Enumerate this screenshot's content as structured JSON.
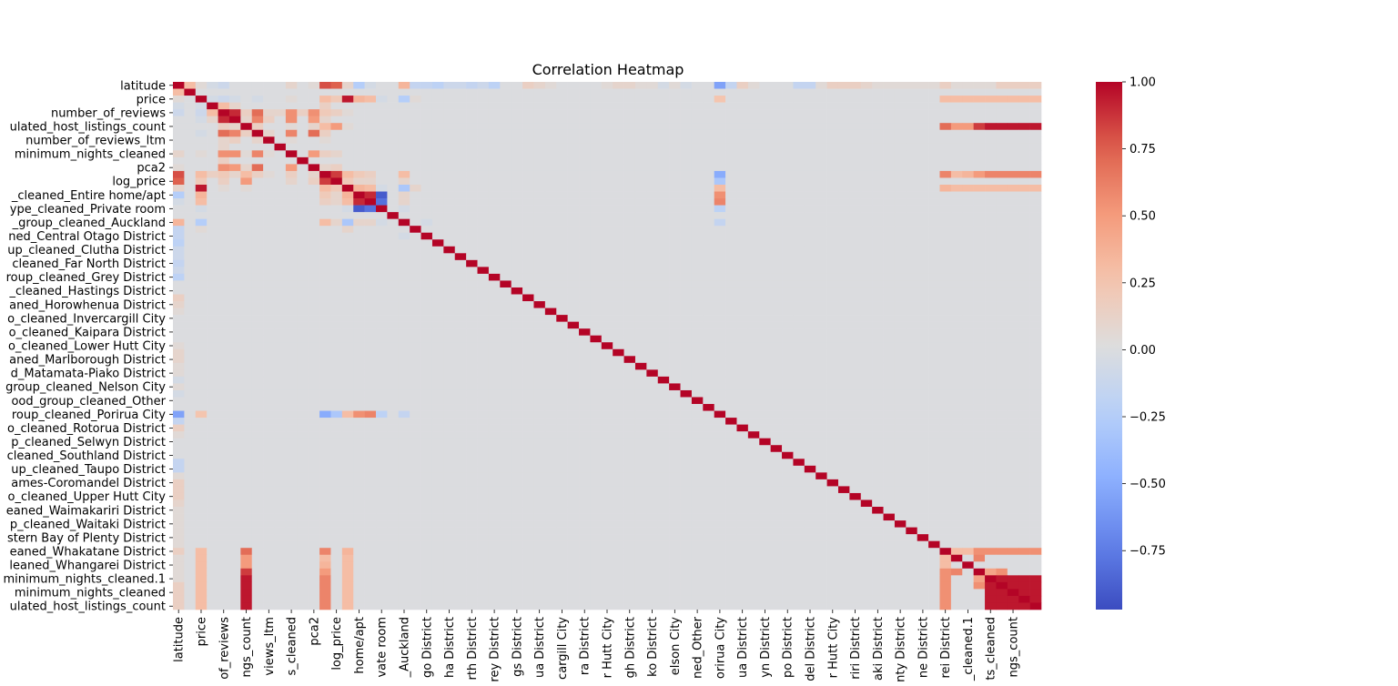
{
  "chart_data": {
    "type": "heatmap",
    "title": "Correlation Heatmap",
    "xlabel": "",
    "ylabel": "",
    "colormap": "coolwarm",
    "colorbar": {
      "vmin": -0.97,
      "vmax": 1.0,
      "ticks": [
        1.0,
        0.75,
        0.5,
        0.25,
        0.0,
        -0.25,
        -0.5,
        -0.75
      ],
      "tick_labels": [
        "1.00",
        "0.75",
        "0.50",
        "0.25",
        "0.00",
        "−0.25",
        "−0.50",
        "−0.75"
      ]
    },
    "y_tick_labels": [
      "latitude",
      "price",
      "number_of_reviews",
      "ulated_host_listings_count",
      "number_of_reviews_ltm",
      "minimum_nights_cleaned",
      "pca2",
      "log_price",
      "_cleaned_Entire home/apt",
      "ype_cleaned_Private room",
      "_group_cleaned_Auckland",
      "ned_Central Otago District",
      "up_cleaned_Clutha District",
      "cleaned_Far North District",
      "roup_cleaned_Grey District",
      "_cleaned_Hastings District",
      "aned_Horowhenua District",
      "o_cleaned_Invercargill City",
      "o_cleaned_Kaipara District",
      "o_cleaned_Lower Hutt City",
      "aned_Marlborough District",
      "d_Matamata-Piako District",
      "group_cleaned_Nelson City",
      "ood_group_cleaned_Other",
      "roup_cleaned_Porirua City",
      "o_cleaned_Rotorua District",
      "p_cleaned_Selwyn District",
      "cleaned_Southland District",
      "up_cleaned_Taupo District",
      "ames-Coromandel District",
      "o_cleaned_Upper Hutt City",
      "eaned_Waimakariri District",
      "p_cleaned_Waitaki District",
      "stern Bay of Plenty District",
      "eaned_Whakatane District",
      "leaned_Whangarei District",
      "minimum_nights_cleaned.1",
      "minimum_nights_cleaned",
      "ulated_host_listings_count"
    ],
    "x_tick_labels": [
      "latitude",
      "price",
      "of_reviews",
      "ngs_count",
      "views_ltm",
      "s_cleaned",
      "pca2",
      "log_price",
      "home/apt",
      "vate room",
      "_Auckland",
      "go District",
      "ha District",
      "rth District",
      "rey District",
      "gs District",
      "ua District",
      "cargill City",
      "ra District",
      "r Hutt City",
      "gh District",
      "ko District",
      "elson City",
      "ned_Other",
      "orirua City",
      "ua District",
      "yn District",
      "po District",
      "del District",
      "r Hutt City",
      "riri District",
      "aki District",
      "nty District",
      "ne District",
      "rei District",
      "_cleaned.1",
      "ts_cleaned",
      "ngs_count"
    ],
    "matrix": {
      "size": 77,
      "diagonal": 1.0,
      "values": [
        [
          0,
          1,
          0.3
        ],
        [
          0,
          2,
          0.05
        ],
        [
          0,
          3,
          -0.05
        ],
        [
          0,
          4,
          -0.1
        ],
        [
          0,
          10,
          0.1
        ],
        [
          0,
          12,
          0.05
        ],
        [
          0,
          13,
          0.8
        ],
        [
          0,
          14,
          0.75
        ],
        [
          0,
          15,
          0.1
        ],
        [
          0,
          16,
          -0.25
        ],
        [
          0,
          17,
          -0.05
        ],
        [
          0,
          20,
          0.35
        ],
        [
          0,
          21,
          -0.15
        ],
        [
          0,
          22,
          -0.15
        ],
        [
          0,
          23,
          -0.2
        ],
        [
          0,
          24,
          -0.1
        ],
        [
          0,
          25,
          -0.1
        ],
        [
          0,
          26,
          -0.15
        ],
        [
          0,
          27,
          -0.1
        ],
        [
          0,
          28,
          -0.2
        ],
        [
          0,
          31,
          0.15
        ],
        [
          0,
          32,
          0.1
        ],
        [
          0,
          33,
          0.05
        ],
        [
          0,
          38,
          0.05
        ],
        [
          0,
          39,
          0.1
        ],
        [
          0,
          40,
          0.1
        ],
        [
          0,
          41,
          0.05
        ],
        [
          0,
          42,
          0.05
        ],
        [
          0,
          43,
          -0.05
        ],
        [
          0,
          44,
          0.05
        ],
        [
          0,
          45,
          -0.05
        ],
        [
          0,
          49,
          -0.15
        ],
        [
          0,
          50,
          0.15
        ],
        [
          0,
          51,
          0.05
        ],
        [
          0,
          55,
          -0.15
        ],
        [
          0,
          56,
          -0.15
        ],
        [
          0,
          57,
          0.05
        ],
        [
          0,
          58,
          0.15
        ],
        [
          0,
          59,
          0.15
        ],
        [
          0,
          60,
          0.15
        ],
        [
          0,
          61,
          0.1
        ],
        [
          0,
          62,
          0.05
        ],
        [
          0,
          63,
          0.05
        ],
        [
          0,
          64,
          0.05
        ],
        [
          0,
          65,
          0.05
        ],
        [
          0,
          66,
          0.05
        ],
        [
          0,
          67,
          0.05
        ],
        [
          0,
          68,
          0.15
        ],
        [
          0,
          69,
          0.05
        ],
        [
          0,
          70,
          0.05
        ],
        [
          0,
          71,
          0.05
        ],
        [
          0,
          72,
          0.05
        ],
        [
          0,
          73,
          0.15
        ],
        [
          0,
          74,
          0.15
        ],
        [
          0,
          75,
          0.15
        ],
        [
          0,
          76,
          0.15
        ],
        [
          0,
          48,
          -0.55
        ],
        [
          2,
          3,
          -0.05
        ],
        [
          2,
          4,
          -0.1
        ],
        [
          2,
          5,
          -0.05
        ],
        [
          2,
          7,
          -0.05
        ],
        [
          2,
          10,
          0.05
        ],
        [
          2,
          13,
          0.3
        ],
        [
          2,
          14,
          0.2
        ],
        [
          2,
          15,
          0.95
        ],
        [
          2,
          16,
          0.35
        ],
        [
          2,
          17,
          0.3
        ],
        [
          2,
          18,
          -0.05
        ],
        [
          2,
          20,
          -0.25
        ],
        [
          2,
          21,
          0.05
        ],
        [
          2,
          48,
          0.25
        ],
        [
          2,
          72,
          0.3
        ],
        [
          2,
          73,
          0.3
        ],
        [
          2,
          74,
          0.3
        ],
        [
          2,
          75,
          0.3
        ],
        [
          2,
          76,
          0.3
        ],
        [
          2,
          68,
          0.3
        ],
        [
          2,
          69,
          0.3
        ],
        [
          2,
          70,
          0.3
        ],
        [
          2,
          71,
          0.3
        ],
        [
          3,
          4,
          0.3
        ],
        [
          3,
          5,
          0.1
        ],
        [
          3,
          13,
          0.15
        ],
        [
          4,
          5,
          0.9
        ],
        [
          4,
          6,
          0.15
        ],
        [
          4,
          7,
          0.7
        ],
        [
          4,
          8,
          0.1
        ],
        [
          4,
          9,
          0.1
        ],
        [
          4,
          10,
          0.55
        ],
        [
          4,
          11,
          0.15
        ],
        [
          4,
          12,
          0.55
        ],
        [
          4,
          13,
          0.2
        ],
        [
          4,
          14,
          0.15
        ],
        [
          4,
          15,
          0.05
        ],
        [
          5,
          6,
          0.1
        ],
        [
          5,
          7,
          0.6
        ],
        [
          5,
          8,
          0.15
        ],
        [
          5,
          10,
          0.55
        ],
        [
          5,
          12,
          0.5
        ],
        [
          5,
          13,
          0.1
        ],
        [
          6,
          7,
          0.15
        ],
        [
          6,
          10,
          0.05
        ],
        [
          6,
          12,
          0.1
        ],
        [
          6,
          13,
          0.3
        ],
        [
          6,
          14,
          0.5
        ],
        [
          6,
          15,
          0.05
        ],
        [
          6,
          68,
          0.7
        ],
        [
          6,
          72,
          0.95
        ],
        [
          6,
          73,
          0.95
        ],
        [
          6,
          74,
          0.95
        ],
        [
          6,
          75,
          0.95
        ],
        [
          6,
          76,
          0.95
        ],
        [
          6,
          71,
          0.85
        ],
        [
          6,
          69,
          0.5
        ],
        [
          6,
          70,
          0.5
        ],
        [
          7,
          8,
          0.1
        ],
        [
          7,
          10,
          0.6
        ],
        [
          7,
          12,
          0.7
        ],
        [
          7,
          13,
          0.15
        ],
        [
          8,
          10,
          0.05
        ],
        [
          8,
          13,
          0.05
        ],
        [
          10,
          12,
          0.5
        ],
        [
          10,
          13,
          0.15
        ],
        [
          10,
          14,
          0.1
        ],
        [
          12,
          13,
          0.1
        ],
        [
          12,
          14,
          0.15
        ],
        [
          13,
          14,
          0.85
        ],
        [
          13,
          15,
          0.3
        ],
        [
          13,
          16,
          0.2
        ],
        [
          13,
          17,
          0.15
        ],
        [
          13,
          20,
          0.3
        ],
        [
          13,
          48,
          -0.5
        ],
        [
          13,
          68,
          0.6
        ],
        [
          13,
          69,
          0.3
        ],
        [
          13,
          70,
          0.35
        ],
        [
          13,
          71,
          0.5
        ],
        [
          13,
          72,
          0.6
        ],
        [
          13,
          73,
          0.6
        ],
        [
          13,
          74,
          0.6
        ],
        [
          13,
          75,
          0.6
        ],
        [
          13,
          76,
          0.6
        ],
        [
          14,
          15,
          0.2
        ],
        [
          14,
          16,
          0.1
        ],
        [
          14,
          17,
          0.1
        ],
        [
          14,
          20,
          0.1
        ],
        [
          14,
          48,
          -0.3
        ],
        [
          15,
          16,
          0.35
        ],
        [
          15,
          17,
          0.3
        ],
        [
          15,
          18,
          -0.05
        ],
        [
          15,
          20,
          -0.3
        ],
        [
          15,
          21,
          0.1
        ],
        [
          15,
          48,
          0.3
        ],
        [
          15,
          68,
          0.35
        ],
        [
          15,
          69,
          0.3
        ],
        [
          15,
          70,
          0.3
        ],
        [
          15,
          71,
          0.3
        ],
        [
          15,
          72,
          0.3
        ],
        [
          15,
          73,
          0.3
        ],
        [
          15,
          74,
          0.3
        ],
        [
          15,
          75,
          0.3
        ],
        [
          15,
          76,
          0.3
        ],
        [
          16,
          17,
          0.9
        ],
        [
          16,
          18,
          -0.9
        ],
        [
          16,
          20,
          0.1
        ],
        [
          16,
          48,
          0.55
        ],
        [
          17,
          18,
          -0.8
        ],
        [
          17,
          20,
          0.1
        ],
        [
          17,
          48,
          0.6
        ],
        [
          18,
          20,
          -0.05
        ],
        [
          18,
          48,
          -0.2
        ],
        [
          20,
          22,
          -0.05
        ],
        [
          20,
          48,
          -0.15
        ],
        [
          68,
          69,
          0.3
        ],
        [
          68,
          70,
          0.3
        ],
        [
          68,
          71,
          0.55
        ],
        [
          68,
          72,
          0.55
        ],
        [
          68,
          73,
          0.55
        ],
        [
          68,
          74,
          0.55
        ],
        [
          68,
          75,
          0.55
        ],
        [
          68,
          76,
          0.55
        ],
        [
          69,
          71,
          0.6
        ],
        [
          71,
          72,
          0.45
        ],
        [
          71,
          73,
          0.55
        ],
        [
          72,
          73,
          0.95
        ],
        [
          72,
          74,
          0.95
        ],
        [
          72,
          75,
          0.95
        ],
        [
          72,
          76,
          0.95
        ],
        [
          73,
          74,
          0.95
        ],
        [
          73,
          75,
          0.95
        ],
        [
          73,
          76,
          0.95
        ],
        [
          74,
          75,
          0.95
        ],
        [
          74,
          76,
          0.95
        ],
        [
          75,
          76,
          0.95
        ]
      ],
      "baseline": 0.0
    }
  }
}
